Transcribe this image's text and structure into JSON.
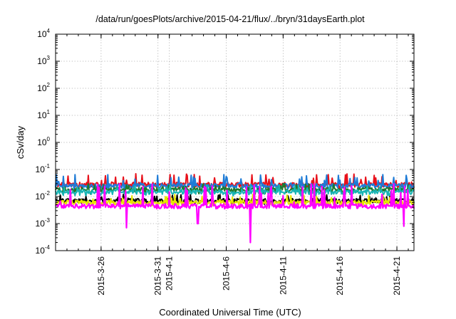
{
  "chart_data": {
    "type": "line",
    "title": "/data/run/goesPlots/archive/2015-04-21/flux/../bryn/31daysEarth.plot",
    "xlabel": "Coordinated Universal Time (UTC)",
    "ylabel": "cSv/day",
    "yscale": "log",
    "ylim": [
      0.0001,
      10000
    ],
    "xlim": [
      "2015-03-22",
      "2015-04-22T12:00"
    ],
    "grid": true,
    "y_ticks": [
      {
        "base": "10",
        "exp": "-4",
        "value": 0.0001
      },
      {
        "base": "10",
        "exp": "-3",
        "value": 0.001
      },
      {
        "base": "10",
        "exp": "-2",
        "value": 0.01
      },
      {
        "base": "10",
        "exp": "-1",
        "value": 0.1
      },
      {
        "base": "10",
        "exp": "0",
        "value": 1
      },
      {
        "base": "10",
        "exp": "1",
        "value": 10
      },
      {
        "base": "10",
        "exp": "2",
        "value": 100
      },
      {
        "base": "10",
        "exp": "3",
        "value": 1000
      },
      {
        "base": "10",
        "exp": "4",
        "value": 10000
      }
    ],
    "x_ticks": [
      {
        "date": "2015-03-26",
        "label": "2015-3-26"
      },
      {
        "date": "2015-03-31",
        "label": "2015-3-31"
      },
      {
        "date": "2015-04-01",
        "label": "2015-4-1"
      },
      {
        "date": "2015-04-06",
        "label": "2015-4-6"
      },
      {
        "date": "2015-04-11",
        "label": "2015-4-11"
      },
      {
        "date": "2015-04-16",
        "label": "2015-4-16"
      },
      {
        "date": "2015-04-21",
        "label": "2015-4-21"
      }
    ],
    "series": [
      {
        "color": "#e8101a",
        "baseline": 0.028,
        "peak_max": 0.07,
        "low": 0.018,
        "x": [
          "2015-03-22",
          "2015-03-25",
          "2015-03-28",
          "2015-04-01",
          "2015-04-05",
          "2015-04-09",
          "2015-04-13",
          "2015-04-17",
          "2015-04-21",
          "2015-04-22T12:00"
        ],
        "y": [
          0.035,
          0.05,
          0.06,
          0.03,
          0.045,
          0.03,
          0.04,
          0.035,
          0.045,
          0.035
        ]
      },
      {
        "color": "#1e7bd6",
        "baseline": 0.025,
        "peak_max": 0.065,
        "low": 0.016,
        "x": [
          "2015-03-22",
          "2015-03-25",
          "2015-03-28",
          "2015-04-01",
          "2015-04-05",
          "2015-04-09",
          "2015-04-13",
          "2015-04-17",
          "2015-04-21",
          "2015-04-22T12:00"
        ],
        "y": [
          0.03,
          0.045,
          0.05,
          0.028,
          0.04,
          0.028,
          0.035,
          0.03,
          0.04,
          0.03
        ]
      },
      {
        "color": "#1c7a2e",
        "baseline": 0.018,
        "peak_max": 0.03,
        "low": 0.012,
        "x": [
          "2015-03-22",
          "2015-04-22T12:00"
        ],
        "y": [
          0.018,
          0.018
        ]
      },
      {
        "color": "#17b4b4",
        "baseline": 0.015,
        "peak_max": 0.028,
        "low": 0.01,
        "x": [
          "2015-03-22",
          "2015-04-22T12:00"
        ],
        "y": [
          0.015,
          0.015
        ]
      },
      {
        "color": "#000000",
        "baseline": 0.007,
        "peak_max": 0.012,
        "low": 0.005,
        "x": [
          "2015-03-22",
          "2015-04-22T12:00"
        ],
        "y": [
          0.007,
          0.007
        ]
      },
      {
        "color": "#e6e600",
        "baseline": 0.006,
        "peak_max": 0.012,
        "low": 0.0045,
        "x": [
          "2015-03-22",
          "2015-04-22T12:00"
        ],
        "y": [
          0.006,
          0.006
        ]
      },
      {
        "color": "#ff00ff",
        "baseline": 0.0045,
        "peak_max": 0.03,
        "low": 0.0035,
        "x": [
          "2015-03-22",
          "2015-03-28T06:00",
          "2015-04-03T12:00",
          "2015-04-08T03:00",
          "2015-04-21T15:00",
          "2015-04-22T12:00"
        ],
        "y": [
          0.0045,
          0.0007,
          0.001,
          0.0002,
          0.0008,
          0.0045
        ]
      }
    ]
  }
}
